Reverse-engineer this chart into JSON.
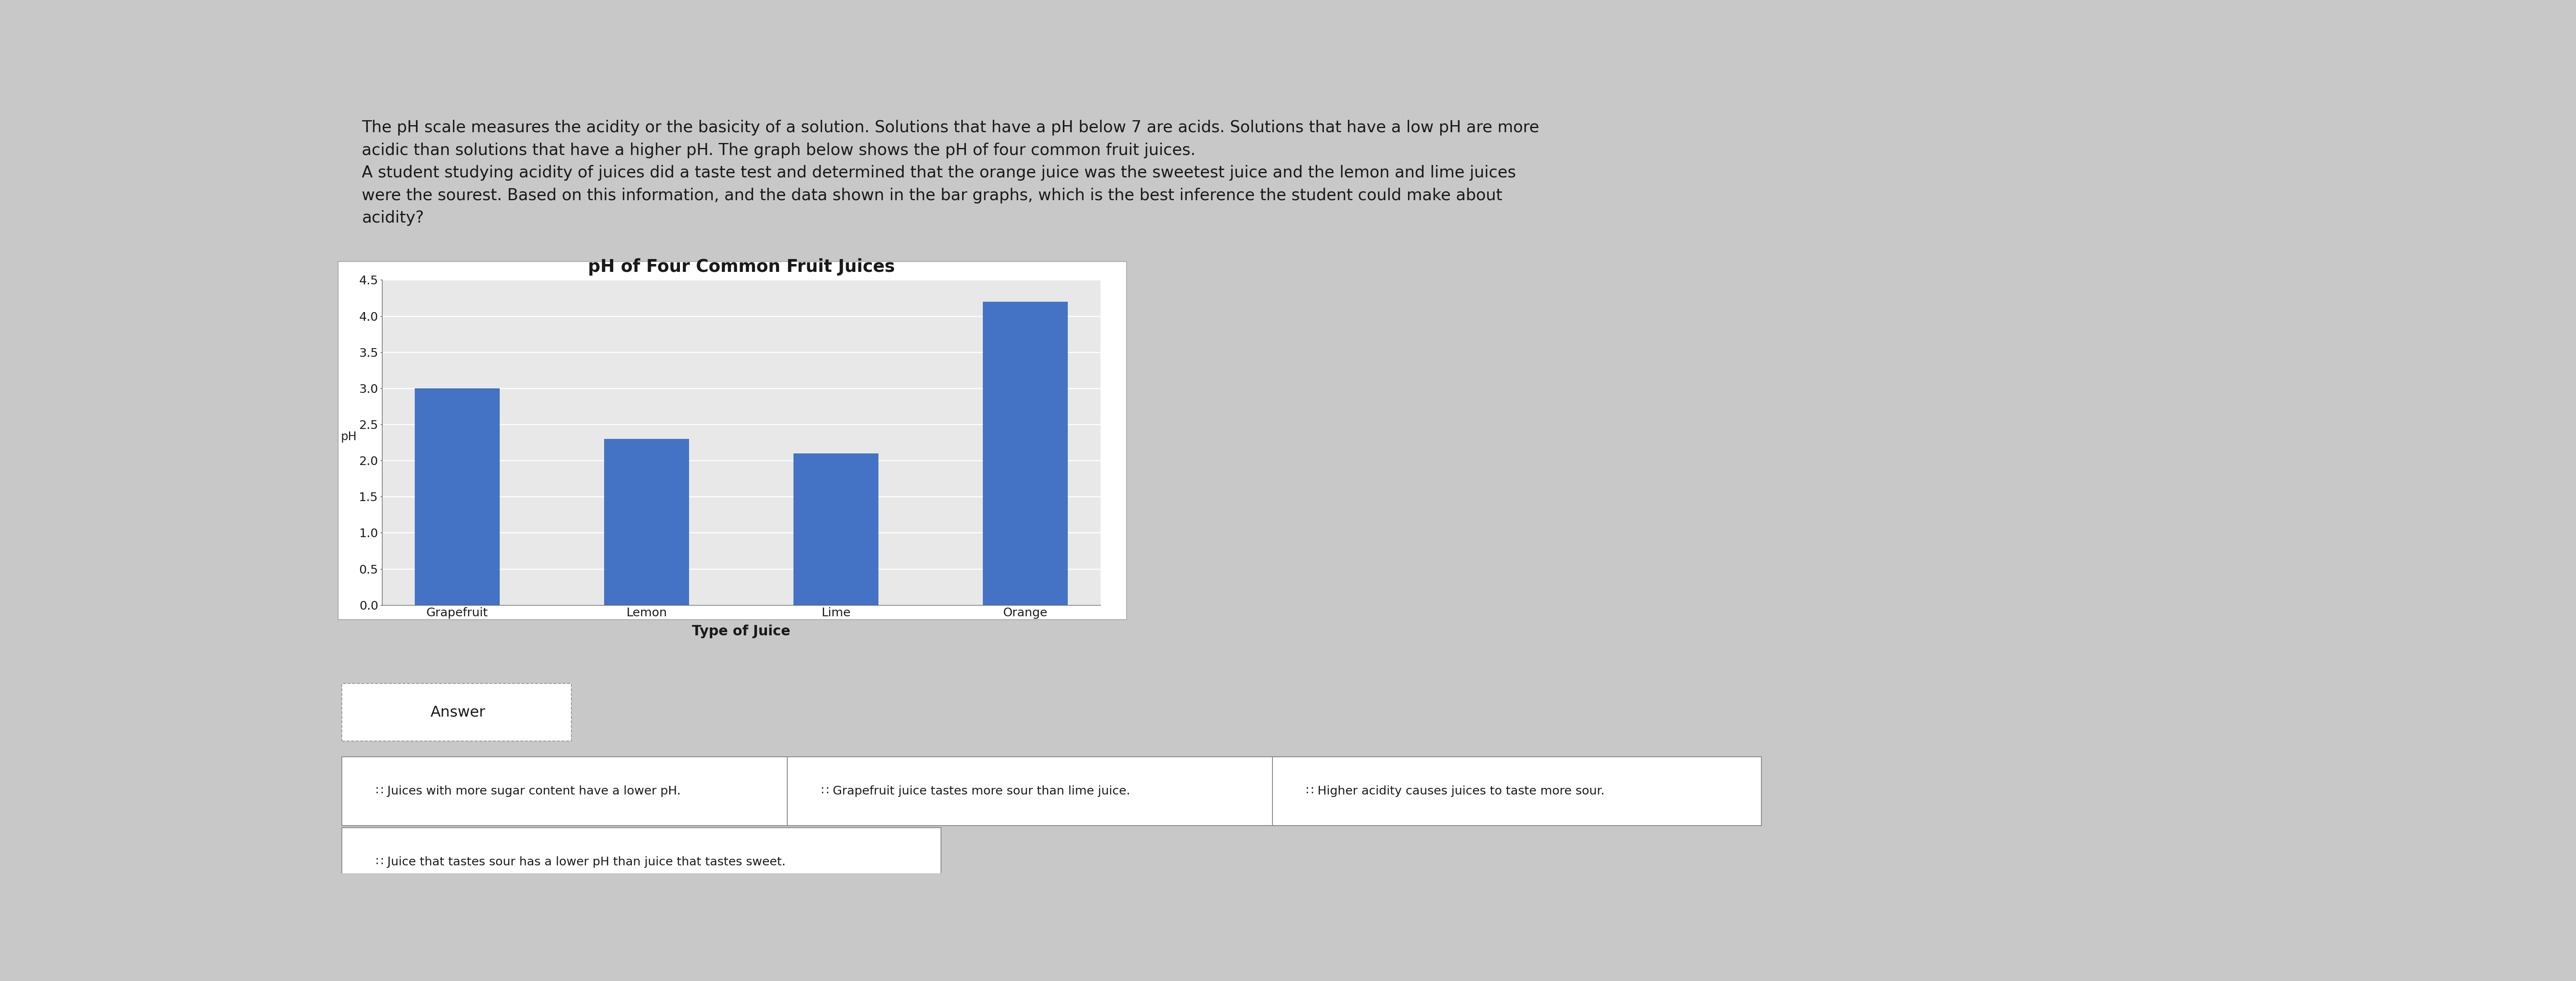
{
  "title_text": "The pH scale measures the acidity or the basicity of a solution. Solutions that have a pH below 7 are acids. Solutions that have a low pH are more\nacidic than solutions that have a higher pH. The graph below shows the pH of four common fruit juices.\nA student studying acidity of juices did a taste test and determined that the orange juice was the sweetest juice and the lemon and lime juices\nwere the sourest. Based on this information, and the data shown in the bar graphs, which is the best inference the student could make about\nacidity?",
  "chart_title": "pH of Four Common Fruit Juices",
  "categories": [
    "Grapefruit",
    "Lemon",
    "Lime",
    "Orange"
  ],
  "values": [
    3.0,
    2.3,
    2.1,
    4.2
  ],
  "bar_color": "#4472C4",
  "xlabel": "Type of Juice",
  "ylabel": "pH",
  "ylim": [
    0,
    4.5
  ],
  "yticks": [
    0,
    0.5,
    1.0,
    1.5,
    2.0,
    2.5,
    3.0,
    3.5,
    4.0,
    4.5
  ],
  "answer_label": "Answer",
  "options": [
    "∷ Juices with more sugar content have a lower pH.",
    "∷ Grapefruit juice tastes more sour than lime juice.",
    "∷ Higher acidity causes juices to taste more sour.",
    "∷ Juice that tastes sour has a lower pH than juice that tastes sweet."
  ],
  "bg_color": "#c8c8c8",
  "chart_bg": "#e8e8e8",
  "text_color": "#1a1a1a",
  "option_box_color": "#ffffff",
  "option_box_edge": "#888888"
}
